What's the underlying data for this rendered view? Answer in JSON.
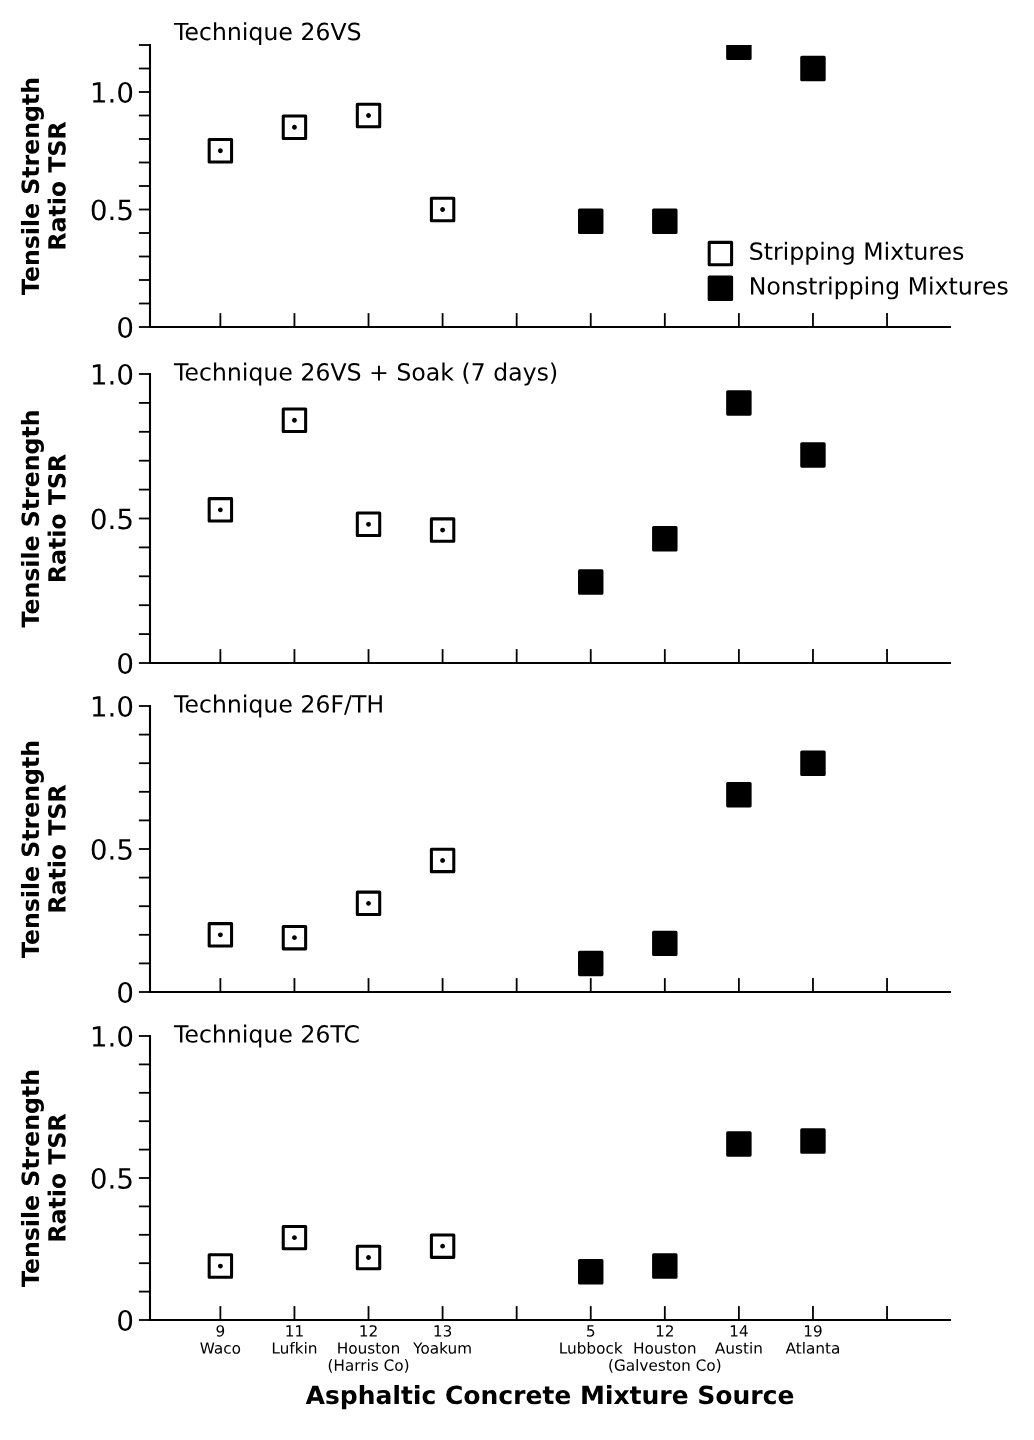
{
  "chart_data": [
    {
      "type": "scatter",
      "title": "Technique 26VS",
      "ylabel": "Tensile Strength\nRatio TSR",
      "tick_labels": "y",
      "legend": "right",
      "marker": "square",
      "categories": [
        null,
        null,
        null,
        null,
        null,
        null,
        null,
        null,
        null,
        null
      ],
      "series": [
        {
          "name": "Stripping Mixtures",
          "color": "#ffffff",
          "values": [
            0.75,
            0.85,
            0.9,
            0.5,
            null,
            null,
            null,
            null,
            null,
            null
          ]
        },
        {
          "name": "Nonstripping Mixtures",
          "color": "#000000",
          "values": [
            null,
            null,
            null,
            null,
            null,
            0.45,
            0.45,
            1.19,
            1.1,
            null
          ]
        }
      ],
      "ylim": [
        0,
        1.2
      ],
      "yticks": [
        0,
        {
          "value": 0.1,
          "label": null
        },
        {
          "value": 0.2,
          "label": null
        },
        {
          "value": 0.3,
          "label": null
        },
        {
          "value": 0.4,
          "label": null
        },
        0.5,
        {
          "value": 0.6,
          "label": null
        },
        {
          "value": 0.7,
          "label": null
        },
        {
          "value": 0.8,
          "label": null
        },
        {
          "value": 0.9,
          "label": null
        },
        {
          "value": 1.0,
          "label": "1.0"
        },
        {
          "value": 1.1,
          "label": null
        },
        {
          "value": 1.2,
          "label": null
        }
      ]
    },
    {
      "type": "scatter",
      "title": "Technique 26VS + Soak (7 days)",
      "ylabel": "Tensile Strength\nRatio TSR",
      "tick_labels": "y",
      "marker": "square",
      "categories": [
        null,
        null,
        null,
        null,
        null,
        null,
        null,
        null,
        null,
        null
      ],
      "series": [
        {
          "color": "#ffffff",
          "values": [
            0.53,
            0.84,
            0.48,
            0.46,
            null,
            null,
            null,
            null,
            null,
            null
          ]
        },
        {
          "color": "#000000",
          "values": [
            null,
            null,
            null,
            null,
            null,
            0.28,
            0.43,
            0.9,
            0.72,
            null
          ]
        }
      ],
      "ylim": [
        0,
        1.0
      ],
      "yticks": [
        0,
        {
          "value": 0.1,
          "label": null
        },
        {
          "value": 0.2,
          "label": null
        },
        {
          "value": 0.3,
          "label": null
        },
        {
          "value": 0.4,
          "label": null
        },
        0.5,
        {
          "value": 0.6,
          "label": null
        },
        {
          "value": 0.7,
          "label": null
        },
        {
          "value": 0.8,
          "label": null
        },
        {
          "value": 0.9,
          "label": null
        },
        {
          "value": 1.0,
          "label": "1.0"
        }
      ]
    },
    {
      "type": "scatter",
      "title": "Technique 26F/TH",
      "ylabel": "Tensile Strength\nRatio TSR",
      "tick_labels": "y",
      "marker": "square",
      "categories": [
        null,
        null,
        null,
        null,
        null,
        null,
        null,
        null,
        null,
        null
      ],
      "series": [
        {
          "color": "#ffffff",
          "values": [
            0.2,
            0.19,
            0.31,
            0.46,
            null,
            null,
            null,
            null,
            null,
            null
          ]
        },
        {
          "color": "#000000",
          "values": [
            null,
            null,
            null,
            null,
            null,
            0.1,
            0.17,
            0.69,
            0.8,
            null
          ]
        }
      ],
      "ylim": [
        0,
        1.0
      ],
      "yticks": [
        0,
        {
          "value": 0.1,
          "label": null
        },
        {
          "value": 0.2,
          "label": null
        },
        {
          "value": 0.3,
          "label": null
        },
        {
          "value": 0.4,
          "label": null
        },
        0.5,
        {
          "value": 0.6,
          "label": null
        },
        {
          "value": 0.7,
          "label": null
        },
        {
          "value": 0.8,
          "label": null
        },
        {
          "value": 0.9,
          "label": null
        },
        {
          "value": 1.0,
          "label": "1.0"
        }
      ]
    },
    {
      "type": "scatter",
      "title": "Technique 26TC",
      "ylabel": "Tensile Strength\nRatio TSR",
      "xlabel": "Asphaltic Concrete Mixture Source",
      "marker": "square",
      "categories": [
        "9\nWaco",
        "11\nLufkin",
        "12\nHouston\n(Harris Co)",
        "13\nYoakum",
        null,
        "5\nLubbock",
        "12\nHouston\n(Galveston Co)",
        "14\nAustin",
        "19\nAtlanta",
        null
      ],
      "series": [
        {
          "color": "#ffffff",
          "values": [
            0.19,
            0.29,
            0.22,
            0.26,
            null,
            null,
            null,
            null,
            null,
            null
          ]
        },
        {
          "color": "#000000",
          "values": [
            null,
            null,
            null,
            null,
            null,
            0.17,
            0.19,
            0.62,
            0.63,
            null
          ]
        }
      ],
      "ylim": [
        0,
        1.0
      ],
      "yticks": [
        0,
        {
          "value": 0.1,
          "label": null
        },
        {
          "value": 0.2,
          "label": null
        },
        {
          "value": 0.3,
          "label": null
        },
        {
          "value": 0.4,
          "label": null
        },
        0.5,
        {
          "value": 0.6,
          "label": null
        },
        {
          "value": 0.7,
          "label": null
        },
        {
          "value": 0.8,
          "label": null
        },
        {
          "value": 0.9,
          "label": null
        },
        {
          "value": 1.0,
          "label": "1.0"
        }
      ]
    }
  ]
}
